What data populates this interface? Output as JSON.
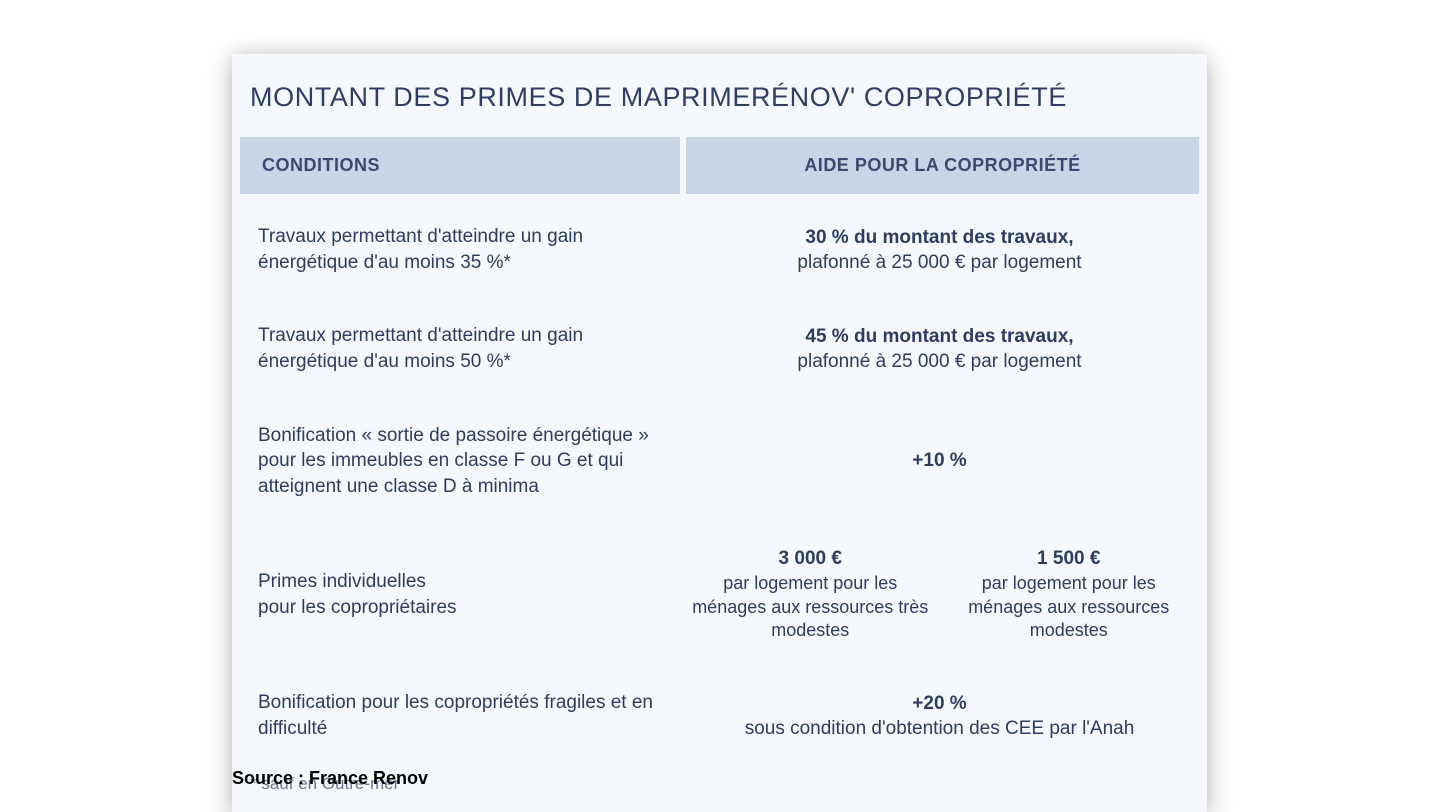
{
  "title": "MONTANT DES PRIMES DE MAPRIMERÉNOV' COPROPRIÉTÉ",
  "headers": {
    "conditions": "CONDITIONS",
    "aide": "AIDE POUR LA COPROPRIÉTÉ"
  },
  "rows": {
    "r1": {
      "cond": "Travaux permettant d'atteindre un gain énergétique d'au moins 35 %*",
      "aide_bold": "30 % du montant des travaux,",
      "aide_sub": "plafonné à 25 000 € par logement"
    },
    "r2": {
      "cond": "Travaux permettant d'atteindre un gain énergétique d'au moins 50 %*",
      "aide_bold": "45 % du montant des travaux,",
      "aide_sub": "plafonné à 25 000 € par logement"
    },
    "r3": {
      "cond": "Bonification « sortie de passoire énergé­tique » pour les immeubles en classe F ou G et qui atteignent une classe D à minima",
      "aide_bold": "+10 %"
    },
    "r4": {
      "cond": "Primes individuelles\npour les copropriétaires",
      "col1_bold": "3 000 €",
      "col1_sub": "par logement pour les ménages aux ressources très modestes",
      "col2_bold": "1 500 €",
      "col2_sub": "par logement pour les ménages aux ressources modestes"
    },
    "r5": {
      "cond": "Bonification pour les copropriétés fragiles et en difficulté",
      "aide_bold": "+20 %",
      "aide_sub": "sous condition d'obtention des CEE par l'Anah"
    }
  },
  "footnote": "* sauf en Outre-mer",
  "source": "Source : France Renov",
  "colors": {
    "card_bg": "#f5f8fd",
    "header_bg": "#c9d4e6",
    "text": "#2d3c60",
    "footnote": "#6b788f"
  }
}
